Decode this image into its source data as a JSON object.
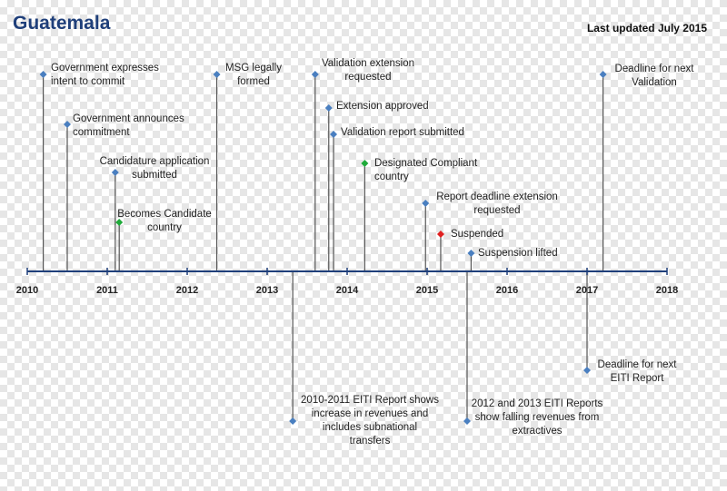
{
  "title": "Guatemala",
  "updated": "Last updated July 2015",
  "colors": {
    "axis": "#1f3f7a",
    "stem": "#555555",
    "blue": "#4a7fc0",
    "green": "#1faa3a",
    "red": "#e02020"
  },
  "years": [
    "2010",
    "2011",
    "2012",
    "2013",
    "2014",
    "2015",
    "2016",
    "2017",
    "2018"
  ],
  "events": [
    {
      "date": 2010.2,
      "side": "up",
      "color": "blue",
      "label": "Government expresses\nintent to commit"
    },
    {
      "date": 2010.5,
      "side": "up",
      "color": "blue",
      "label": "Government announces\ncommitment"
    },
    {
      "date": 2011.1,
      "side": "up",
      "color": "blue",
      "label": "Candidature application\nsubmitted"
    },
    {
      "date": 2011.15,
      "side": "up",
      "color": "green",
      "label": "Becomes Candidate\ncountry"
    },
    {
      "date": 2012.37,
      "side": "up",
      "color": "blue",
      "label": "MSG legally\nformed"
    },
    {
      "date": 2013.6,
      "side": "up",
      "color": "blue",
      "label": "Validation extension\nrequested"
    },
    {
      "date": 2013.77,
      "side": "up",
      "color": "blue",
      "label": "Extension approved"
    },
    {
      "date": 2013.83,
      "side": "up",
      "color": "blue",
      "label": "Validation report submitted"
    },
    {
      "date": 2014.22,
      "side": "up",
      "color": "green",
      "label": "Designated Compliant\ncountry"
    },
    {
      "date": 2014.98,
      "side": "up",
      "color": "blue",
      "label": "Report deadline extension\nrequested"
    },
    {
      "date": 2015.17,
      "side": "up",
      "color": "red",
      "label": "Suspended"
    },
    {
      "date": 2015.55,
      "side": "up",
      "color": "blue",
      "label": "Suspension lifted"
    },
    {
      "date": 2017.2,
      "side": "up",
      "color": "blue",
      "label": "Deadline for next\nValidation"
    },
    {
      "date": 2013.32,
      "side": "down",
      "color": "blue",
      "label": "2010-2011 EITI Report shows\nincrease in revenues and\nincludes subnational\ntransfers"
    },
    {
      "date": 2015.5,
      "side": "down",
      "color": "blue",
      "label": "2012 and 2013 EITI Reports\nshow falling revenues from\nextractives"
    },
    {
      "date": 2017.0,
      "side": "down",
      "color": "blue",
      "label": "Deadline for next\nEITI Report"
    }
  ]
}
